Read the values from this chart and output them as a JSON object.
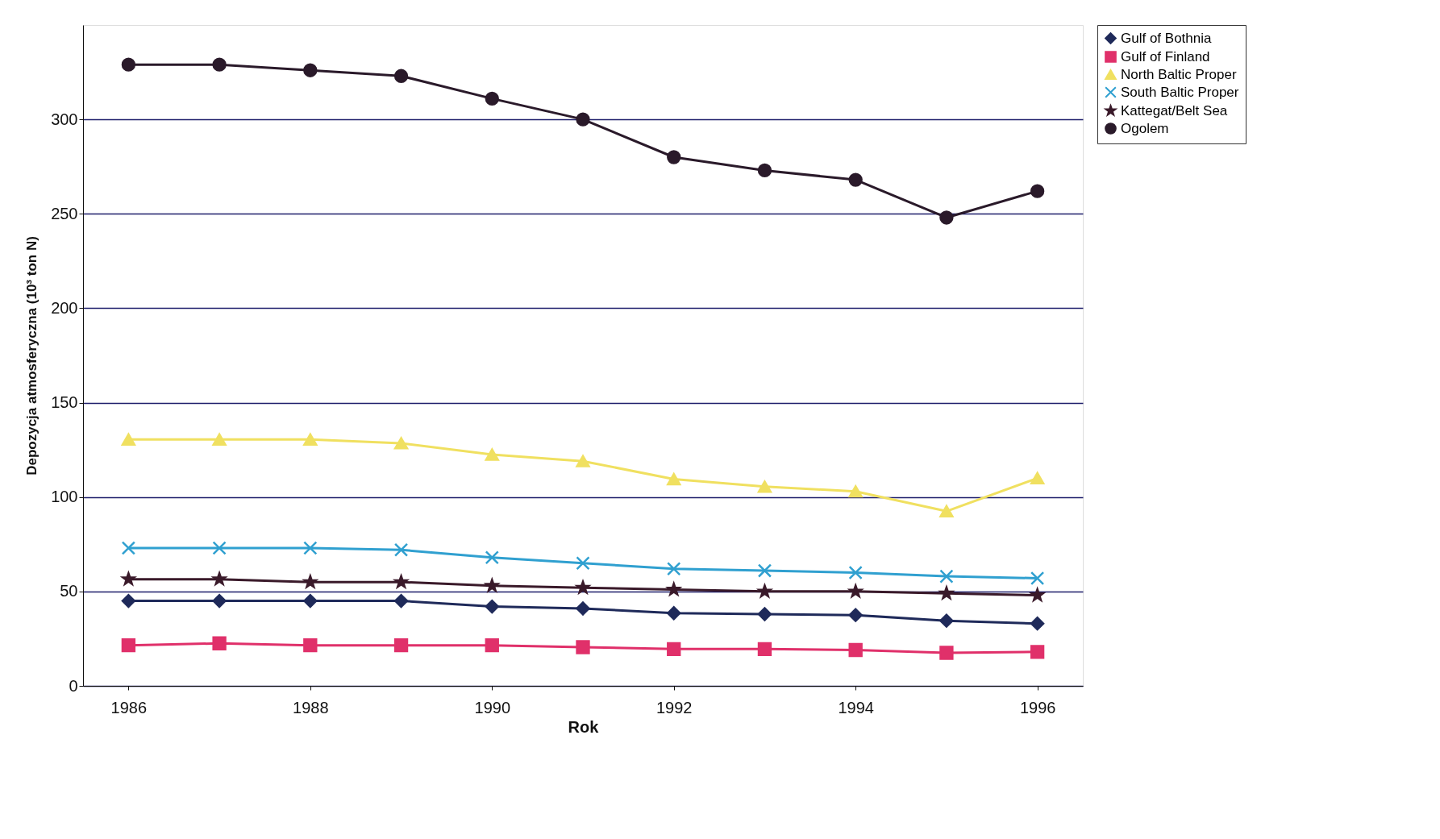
{
  "chart_data": {
    "type": "line",
    "xlabel": "Rok",
    "ylabel": "Depozycja atmosferyczna (10³ ton N)",
    "x": [
      1986,
      1987,
      1988,
      1989,
      1990,
      1991,
      1992,
      1993,
      1994,
      1995,
      1996
    ],
    "xlim": [
      1985.5,
      1996.5
    ],
    "xticks": [
      1986,
      1988,
      1990,
      1992,
      1994,
      1996
    ],
    "ylim": [
      0,
      350
    ],
    "yticks": [
      0,
      50,
      100,
      150,
      200,
      250,
      300
    ],
    "grid": "y",
    "legend": "top right",
    "line_style": "solid",
    "series": [
      {
        "name": "Gulf of Bothnia",
        "color": "#1f2a5a",
        "marker": "diamond",
        "values": [
          45,
          45,
          45,
          45,
          42,
          41,
          38.5,
          38,
          37.5,
          34.5,
          33
        ]
      },
      {
        "name": "Gulf of Finland",
        "color": "#e0306a",
        "marker": "square",
        "values": [
          21.5,
          22.5,
          21.5,
          21.5,
          21.5,
          20.5,
          19.5,
          19.5,
          19,
          17.5,
          18
        ]
      },
      {
        "name": "North Baltic Proper",
        "color": "#f0e060",
        "marker": "triangle",
        "values": [
          130.5,
          130.5,
          130.5,
          128.5,
          122.5,
          119,
          109.5,
          105.5,
          103,
          92.5,
          110
        ]
      },
      {
        "name": "South Baltic Proper",
        "color": "#30a0d0",
        "marker": "cross",
        "values": [
          73,
          73,
          73,
          72,
          68,
          65,
          62,
          61,
          60,
          58,
          57
        ]
      },
      {
        "name": "Kattegat/Belt Sea",
        "color": "#3a1a2a",
        "marker": "star",
        "values": [
          56.5,
          56.5,
          55,
          55,
          53,
          52,
          51,
          50,
          50,
          49,
          48
        ]
      },
      {
        "name": "Ogolem",
        "color": "#2a1a2a",
        "marker": "circle",
        "values": [
          329,
          329,
          326,
          323,
          311,
          300,
          280,
          273,
          268,
          248,
          262
        ]
      }
    ]
  }
}
